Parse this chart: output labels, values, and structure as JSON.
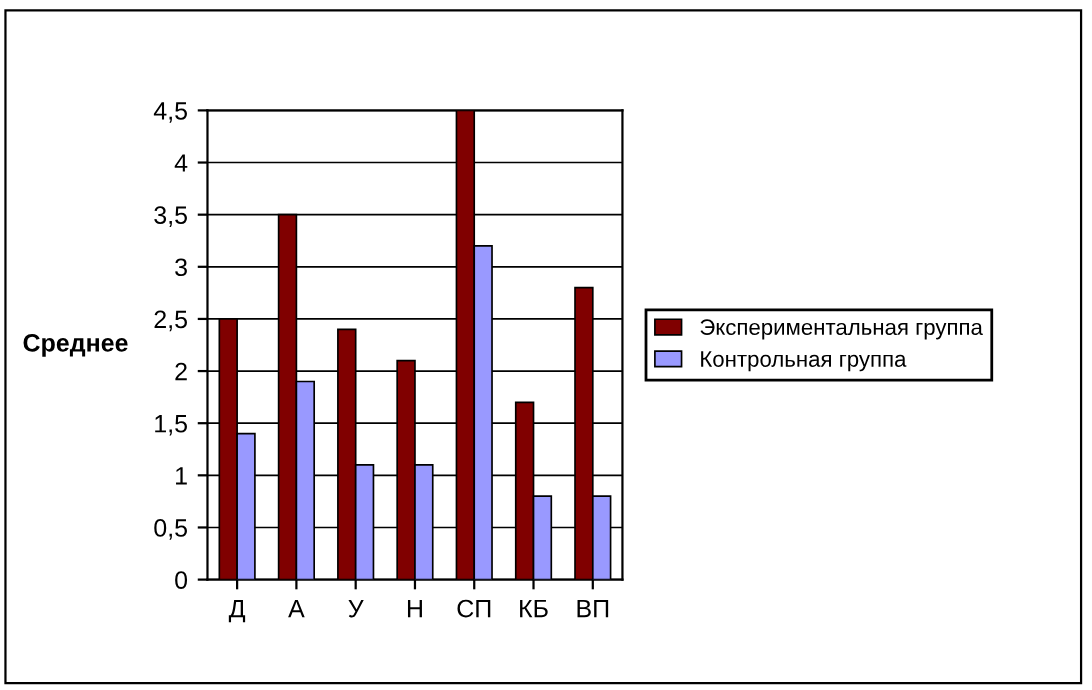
{
  "chart_data": {
    "type": "bar",
    "ylabel": "Среднее",
    "categories": [
      "Д",
      "А",
      "У",
      "Н",
      "СП",
      "КБ",
      "ВП"
    ],
    "series": [
      {
        "name": "Экспериментальная группа",
        "color": "#800000",
        "values": [
          2.5,
          3.5,
          2.4,
          2.1,
          4.5,
          1.7,
          2.8
        ]
      },
      {
        "name": "Контрольная группа",
        "color": "#9999ff",
        "values": [
          1.4,
          1.9,
          1.1,
          1.1,
          3.2,
          0.8,
          0.8
        ]
      }
    ],
    "ylim": [
      0,
      4.5
    ],
    "yticks": [
      {
        "value": 0,
        "label": "0"
      },
      {
        "value": 0.5,
        "label": "0,5"
      },
      {
        "value": 1,
        "label": "1"
      },
      {
        "value": 1.5,
        "label": "1,5"
      },
      {
        "value": 2,
        "label": "2"
      },
      {
        "value": 2.5,
        "label": "2,5"
      },
      {
        "value": 3,
        "label": "3"
      },
      {
        "value": 3.5,
        "label": "3,5"
      },
      {
        "value": 4,
        "label": "4"
      },
      {
        "value": 4.5,
        "label": "4,5"
      }
    ],
    "grid": "y",
    "legend": "right"
  }
}
